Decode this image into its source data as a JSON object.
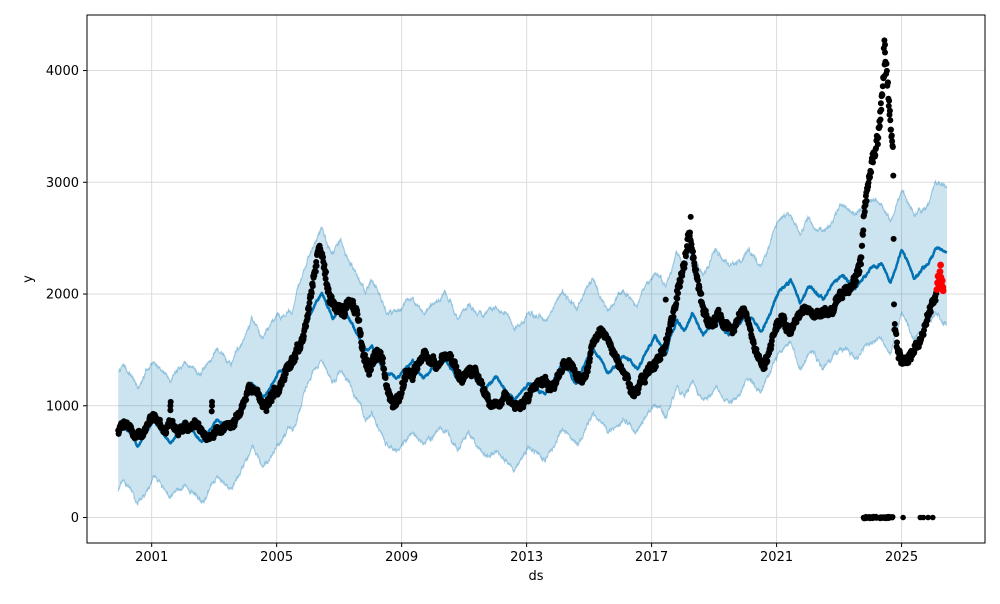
{
  "figure": {
    "background": "#ffffff"
  },
  "chart_data": {
    "type": "scatter",
    "subtype": "prophet-forecast-plot",
    "title": "",
    "xlabel": "ds",
    "ylabel": "y",
    "xlim": [
      1998.93,
      2027.67
    ],
    "ylim": [
      -228,
      4497
    ],
    "xticks": {
      "values": [
        2001,
        2005,
        2009,
        2013,
        2017,
        2021,
        2025
      ],
      "labels": [
        "2001",
        "2005",
        "2009",
        "2013",
        "2017",
        "2021",
        "2025"
      ]
    },
    "yticks": {
      "values": [
        0,
        1000,
        2000,
        3000,
        4000
      ],
      "labels": [
        "0",
        "1000",
        "2000",
        "3000",
        "4000"
      ]
    },
    "grid": {
      "show": true,
      "color": "#dcdcdc"
    },
    "legend": {
      "show": false
    },
    "colors": {
      "actual": "#000000",
      "forecast": "#0072B2",
      "interval_fill": "rgba(0,114,178,0.2)",
      "interval_edge": "rgba(0,114,178,0.35)",
      "recent": "#ff0000",
      "spine": "#000000",
      "tick_label": "#000000"
    },
    "series": {
      "actual_points": {
        "label": "observed y (black dots)",
        "x_start": 1999.93,
        "x_end": 2026.12,
        "sample_step_years": 0.012,
        "marker_radius": 3,
        "anchors": [
          [
            1999.93,
            780
          ],
          [
            2000.2,
            840
          ],
          [
            2000.45,
            700
          ],
          [
            2000.7,
            690
          ],
          [
            2000.95,
            840
          ],
          [
            2001.15,
            855
          ],
          [
            2001.45,
            745
          ],
          [
            2001.62,
            860
          ],
          [
            2001.85,
            730
          ],
          [
            2002.1,
            815
          ],
          [
            2002.4,
            790
          ],
          [
            2002.75,
            735
          ],
          [
            2003.0,
            800
          ],
          [
            2003.3,
            855
          ],
          [
            2003.6,
            810
          ],
          [
            2003.9,
            930
          ],
          [
            2004.1,
            1120
          ],
          [
            2004.35,
            1090
          ],
          [
            2004.6,
            1000
          ],
          [
            2004.85,
            1100
          ],
          [
            2005.1,
            1220
          ],
          [
            2005.4,
            1400
          ],
          [
            2005.7,
            1560
          ],
          [
            2005.95,
            1760
          ],
          [
            2006.15,
            2080
          ],
          [
            2006.35,
            2420
          ],
          [
            2006.5,
            2280
          ],
          [
            2006.7,
            2010
          ],
          [
            2006.95,
            1900
          ],
          [
            2007.15,
            1870
          ],
          [
            2007.35,
            1990
          ],
          [
            2007.55,
            1890
          ],
          [
            2007.75,
            1560
          ],
          [
            2007.95,
            1340
          ],
          [
            2008.15,
            1400
          ],
          [
            2008.35,
            1410
          ],
          [
            2008.55,
            1080
          ],
          [
            2008.75,
            960
          ],
          [
            2008.95,
            1040
          ],
          [
            2009.15,
            1250
          ],
          [
            2009.4,
            1330
          ],
          [
            2009.6,
            1460
          ],
          [
            2009.85,
            1480
          ],
          [
            2010.1,
            1400
          ],
          [
            2010.35,
            1510
          ],
          [
            2010.55,
            1470
          ],
          [
            2010.75,
            1300
          ],
          [
            2010.95,
            1230
          ],
          [
            2011.15,
            1320
          ],
          [
            2011.35,
            1330
          ],
          [
            2011.55,
            1180
          ],
          [
            2011.75,
            1060
          ],
          [
            2012.0,
            1010
          ],
          [
            2012.3,
            1060
          ],
          [
            2012.6,
            980
          ],
          [
            2012.85,
            960
          ],
          [
            2013.1,
            1060
          ],
          [
            2013.35,
            1160
          ],
          [
            2013.55,
            1190
          ],
          [
            2013.75,
            1120
          ],
          [
            2013.95,
            1230
          ],
          [
            2014.15,
            1400
          ],
          [
            2014.35,
            1430
          ],
          [
            2014.55,
            1310
          ],
          [
            2014.75,
            1260
          ],
          [
            2014.95,
            1360
          ],
          [
            2015.15,
            1570
          ],
          [
            2015.35,
            1650
          ],
          [
            2015.55,
            1600
          ],
          [
            2015.75,
            1500
          ],
          [
            2015.95,
            1430
          ],
          [
            2016.15,
            1250
          ],
          [
            2016.4,
            1170
          ],
          [
            2016.6,
            1190
          ],
          [
            2016.85,
            1320
          ],
          [
            2017.05,
            1400
          ],
          [
            2017.25,
            1480
          ],
          [
            2017.45,
            1600
          ],
          [
            2017.65,
            1800
          ],
          [
            2017.85,
            2060
          ],
          [
            2018.05,
            2310
          ],
          [
            2018.2,
            2570
          ],
          [
            2018.35,
            2340
          ],
          [
            2018.55,
            2000
          ],
          [
            2018.75,
            1800
          ],
          [
            2018.95,
            1710
          ],
          [
            2019.15,
            1780
          ],
          [
            2019.35,
            1690
          ],
          [
            2019.55,
            1610
          ],
          [
            2019.75,
            1720
          ],
          [
            2019.95,
            1800
          ],
          [
            2020.15,
            1720
          ],
          [
            2020.4,
            1480
          ],
          [
            2020.6,
            1390
          ],
          [
            2020.8,
            1580
          ],
          [
            2021.0,
            1740
          ],
          [
            2021.2,
            1810
          ],
          [
            2021.4,
            1700
          ],
          [
            2021.6,
            1740
          ],
          [
            2021.8,
            1790
          ],
          [
            2022.0,
            1850
          ],
          [
            2022.2,
            1760
          ],
          [
            2022.45,
            1790
          ],
          [
            2022.7,
            1810
          ],
          [
            2022.9,
            1930
          ],
          [
            2023.1,
            2010
          ],
          [
            2023.3,
            2080
          ],
          [
            2023.5,
            2180
          ],
          [
            2023.7,
            2320
          ],
          [
            2023.8,
            2780
          ],
          [
            2023.95,
            3060
          ],
          [
            2024.1,
            3260
          ],
          [
            2024.25,
            3460
          ],
          [
            2024.38,
            3820
          ],
          [
            2024.47,
            4140
          ],
          [
            2024.56,
            3920
          ],
          [
            2024.66,
            3520
          ],
          [
            2024.73,
            3280
          ],
          [
            2024.76,
            1800
          ],
          [
            2024.9,
            1500
          ],
          [
            2025.05,
            1450
          ],
          [
            2025.2,
            1430
          ],
          [
            2025.35,
            1520
          ],
          [
            2025.5,
            1560
          ],
          [
            2025.65,
            1660
          ],
          [
            2025.8,
            1800
          ],
          [
            2025.95,
            1900
          ],
          [
            2026.12,
            2010
          ]
        ],
        "scatter_spread_anchors": [
          [
            1999.93,
            55
          ],
          [
            2004,
            55
          ],
          [
            2006.3,
            85
          ],
          [
            2008,
            95
          ],
          [
            2010,
            60
          ],
          [
            2013,
            55
          ],
          [
            2016,
            60
          ],
          [
            2018,
            95
          ],
          [
            2019.5,
            60
          ],
          [
            2021,
            55
          ],
          [
            2023,
            55
          ],
          [
            2023.9,
            120
          ],
          [
            2024.5,
            140
          ],
          [
            2025,
            70
          ],
          [
            2026.12,
            55
          ]
        ]
      },
      "forecast_line": {
        "label": "yhat (forecast line)",
        "x_start": 1999.93,
        "x_end": 2026.45,
        "line_width": 2.4,
        "anchors": [
          [
            1999.93,
            760
          ],
          [
            2000.1,
            820
          ],
          [
            2000.55,
            640
          ],
          [
            2001.05,
            890
          ],
          [
            2001.6,
            680
          ],
          [
            2002.05,
            870
          ],
          [
            2002.6,
            700
          ],
          [
            2003.1,
            900
          ],
          [
            2003.55,
            790
          ],
          [
            2004.2,
            1200
          ],
          [
            2004.55,
            1060
          ],
          [
            2005.05,
            1280
          ],
          [
            2005.5,
            1340
          ],
          [
            2006.0,
            1750
          ],
          [
            2006.45,
            2020
          ],
          [
            2006.8,
            1800
          ],
          [
            2007.05,
            1900
          ],
          [
            2007.5,
            1680
          ],
          [
            2007.85,
            1500
          ],
          [
            2008.05,
            1560
          ],
          [
            2008.5,
            1280
          ],
          [
            2008.85,
            1240
          ],
          [
            2009.35,
            1400
          ],
          [
            2009.7,
            1260
          ],
          [
            2010.1,
            1390
          ],
          [
            2010.45,
            1400
          ],
          [
            2010.8,
            1210
          ],
          [
            2011.15,
            1330
          ],
          [
            2011.6,
            1150
          ],
          [
            2012.05,
            1260
          ],
          [
            2012.6,
            1060
          ],
          [
            2013.05,
            1210
          ],
          [
            2013.6,
            1080
          ],
          [
            2014.15,
            1360
          ],
          [
            2014.6,
            1210
          ],
          [
            2015.1,
            1500
          ],
          [
            2015.6,
            1310
          ],
          [
            2016.1,
            1450
          ],
          [
            2016.55,
            1350
          ],
          [
            2017.1,
            1620
          ],
          [
            2017.45,
            1470
          ],
          [
            2017.8,
            1760
          ],
          [
            2018.05,
            1680
          ],
          [
            2018.3,
            1810
          ],
          [
            2018.65,
            1610
          ],
          [
            2019.05,
            1760
          ],
          [
            2019.5,
            1610
          ],
          [
            2020.05,
            1810
          ],
          [
            2020.5,
            1670
          ],
          [
            2021.05,
            2000
          ],
          [
            2021.45,
            2110
          ],
          [
            2021.75,
            1910
          ],
          [
            2022.05,
            2060
          ],
          [
            2022.5,
            1960
          ],
          [
            2023.05,
            2160
          ],
          [
            2023.5,
            2060
          ],
          [
            2024.05,
            2220
          ],
          [
            2024.35,
            2260
          ],
          [
            2024.65,
            2080
          ],
          [
            2025.0,
            2390
          ],
          [
            2025.4,
            2160
          ],
          [
            2025.8,
            2260
          ],
          [
            2026.1,
            2400
          ],
          [
            2026.45,
            2350
          ]
        ]
      },
      "uncertainty_band": {
        "label": "yhat uncertainty interval",
        "x_start": 1999.93,
        "x_end": 2026.45,
        "upper_offset_anchors": [
          [
            1999.93,
            560
          ],
          [
            2003,
            560
          ],
          [
            2006,
            520
          ],
          [
            2009,
            580
          ],
          [
            2013,
            640
          ],
          [
            2017,
            580
          ],
          [
            2021,
            600
          ],
          [
            2024,
            600
          ],
          [
            2026.45,
            560
          ]
        ],
        "lower_offset_anchors": [
          [
            1999.93,
            520
          ],
          [
            2004,
            600
          ],
          [
            2006.5,
            560
          ],
          [
            2009,
            600
          ],
          [
            2013,
            620
          ],
          [
            2017,
            560
          ],
          [
            2021,
            580
          ],
          [
            2024,
            620
          ],
          [
            2026.45,
            580
          ]
        ]
      },
      "recent_points": {
        "label": "latest actuals (red dots)",
        "marker_radius": 3.4,
        "points": [
          [
            2026.13,
            2040
          ],
          [
            2026.15,
            2100
          ],
          [
            2026.17,
            2160
          ],
          [
            2026.19,
            2060
          ],
          [
            2026.21,
            2120
          ],
          [
            2026.23,
            2200
          ],
          [
            2026.25,
            2260
          ],
          [
            2026.26,
            2150
          ],
          [
            2026.28,
            2080
          ],
          [
            2026.3,
            2120
          ],
          [
            2026.32,
            2060
          ],
          [
            2026.33,
            2030
          ]
        ]
      },
      "zero_value_points": {
        "label": "zero-value outlier dots",
        "value": 0,
        "marker_radius": 2.8,
        "ranges": [
          [
            2023.78,
            2024.22
          ],
          [
            2024.3,
            2024.72
          ]
        ],
        "sample_step_years": 0.016,
        "singles": [
          2025.05,
          2025.6,
          2025.7,
          2025.85,
          2026.0
        ]
      },
      "extra_points": {
        "label": "isolated outlier dots",
        "points": [
          [
            2001.6,
            960
          ],
          [
            2001.6,
            1000
          ],
          [
            2001.61,
            1035
          ],
          [
            2002.92,
            950
          ],
          [
            2002.93,
            1000
          ],
          [
            2002.93,
            1035
          ],
          [
            2017.45,
            1950
          ],
          [
            2018.25,
            2690
          ],
          [
            2024.43,
            4200
          ],
          [
            2024.45,
            4270
          ],
          [
            2024.47,
            4230
          ]
        ]
      }
    }
  }
}
